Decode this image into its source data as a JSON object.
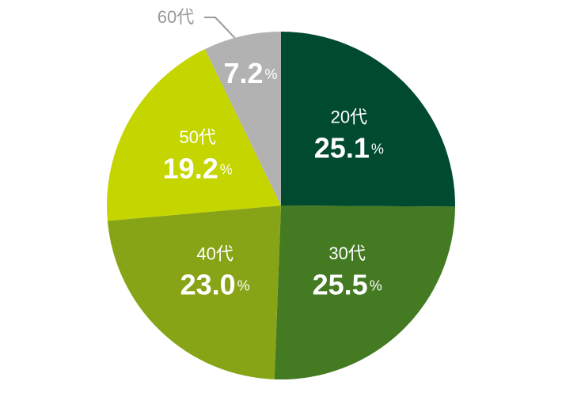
{
  "chart_data": {
    "type": "pie",
    "categories": [
      "20代",
      "30代",
      "40代",
      "50代",
      "60代"
    ],
    "values": [
      25.1,
      25.5,
      23.0,
      19.2,
      7.2
    ],
    "value_labels": [
      "25.1",
      "25.5",
      "23.0",
      "19.2",
      "7.2"
    ],
    "unit": "%",
    "colors": [
      "#004a30",
      "#437a22",
      "#86a415",
      "#c5d500",
      "#b2b2b2"
    ]
  }
}
